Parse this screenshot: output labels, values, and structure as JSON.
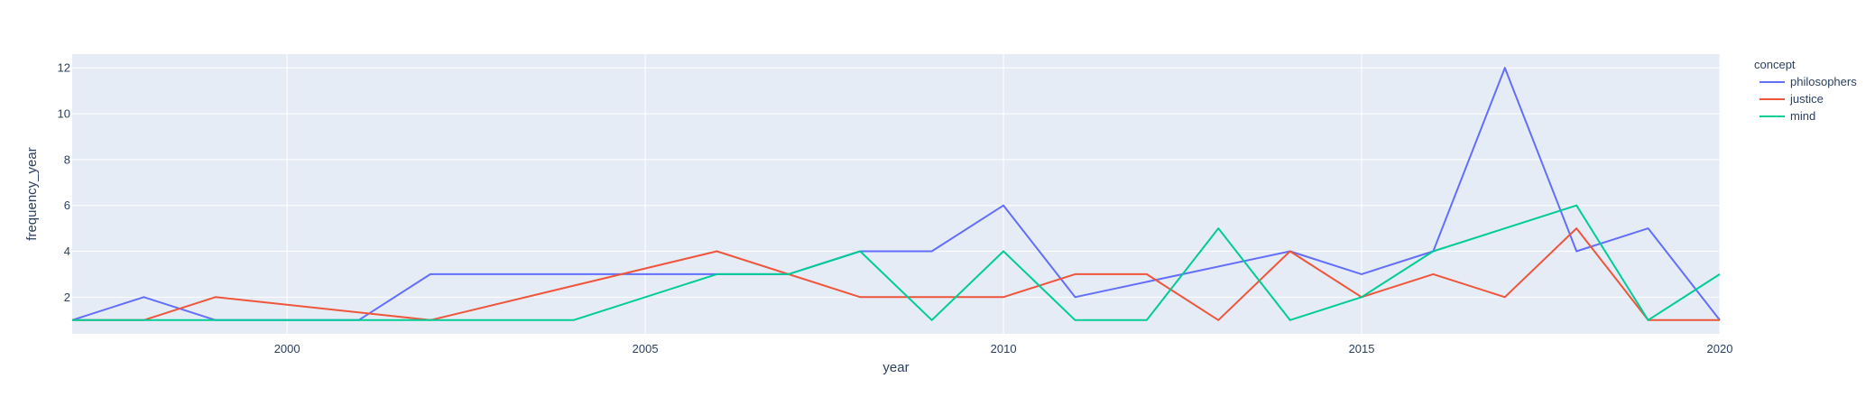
{
  "chart_data": {
    "type": "line",
    "title": "",
    "xlabel": "year",
    "ylabel": "frequency_year",
    "xlim": [
      1997,
      2020
    ],
    "ylim": [
      0.4,
      12.6
    ],
    "x_ticks": [
      2000,
      2005,
      2010,
      2015,
      2020
    ],
    "y_ticks": [
      2,
      4,
      6,
      8,
      10,
      12
    ],
    "grid": true,
    "legend": {
      "title": "concept",
      "position": "right"
    },
    "colors": {
      "plot_bg": "#e5ecf6",
      "grid": "#ffffff",
      "text": "#2a3f5f"
    },
    "series": [
      {
        "name": "philosophers",
        "color": "#636efa",
        "points": [
          [
            1997,
            1
          ],
          [
            1998,
            2
          ],
          [
            1999,
            1
          ],
          [
            2001,
            1
          ],
          [
            2002,
            3
          ],
          [
            2007,
            3
          ],
          [
            2008,
            4
          ],
          [
            2009,
            4
          ],
          [
            2010,
            6
          ],
          [
            2011,
            2
          ],
          [
            2014,
            4
          ],
          [
            2015,
            3
          ],
          [
            2016,
            4
          ],
          [
            2017,
            12
          ],
          [
            2018,
            4
          ],
          [
            2019,
            5
          ],
          [
            2020,
            1
          ]
        ]
      },
      {
        "name": "justice",
        "color": "#ef553b",
        "points": [
          [
            1997,
            1
          ],
          [
            1998,
            1
          ],
          [
            1999,
            2
          ],
          [
            2002,
            1
          ],
          [
            2006,
            4
          ],
          [
            2008,
            2
          ],
          [
            2010,
            2
          ],
          [
            2011,
            3
          ],
          [
            2012,
            3
          ],
          [
            2013,
            1
          ],
          [
            2014,
            4
          ],
          [
            2015,
            2
          ],
          [
            2016,
            3
          ],
          [
            2017,
            2
          ],
          [
            2018,
            5
          ],
          [
            2019,
            1
          ],
          [
            2020,
            1
          ]
        ]
      },
      {
        "name": "mind",
        "color": "#00cc96",
        "points": [
          [
            1997,
            1
          ],
          [
            2004,
            1
          ],
          [
            2006,
            3
          ],
          [
            2007,
            3
          ],
          [
            2008,
            4
          ],
          [
            2009,
            1
          ],
          [
            2010,
            4
          ],
          [
            2011,
            1
          ],
          [
            2012,
            1
          ],
          [
            2013,
            5
          ],
          [
            2014,
            1
          ],
          [
            2015,
            2
          ],
          [
            2016,
            4
          ],
          [
            2018,
            6
          ],
          [
            2019,
            1
          ],
          [
            2020,
            3
          ]
        ]
      }
    ]
  }
}
